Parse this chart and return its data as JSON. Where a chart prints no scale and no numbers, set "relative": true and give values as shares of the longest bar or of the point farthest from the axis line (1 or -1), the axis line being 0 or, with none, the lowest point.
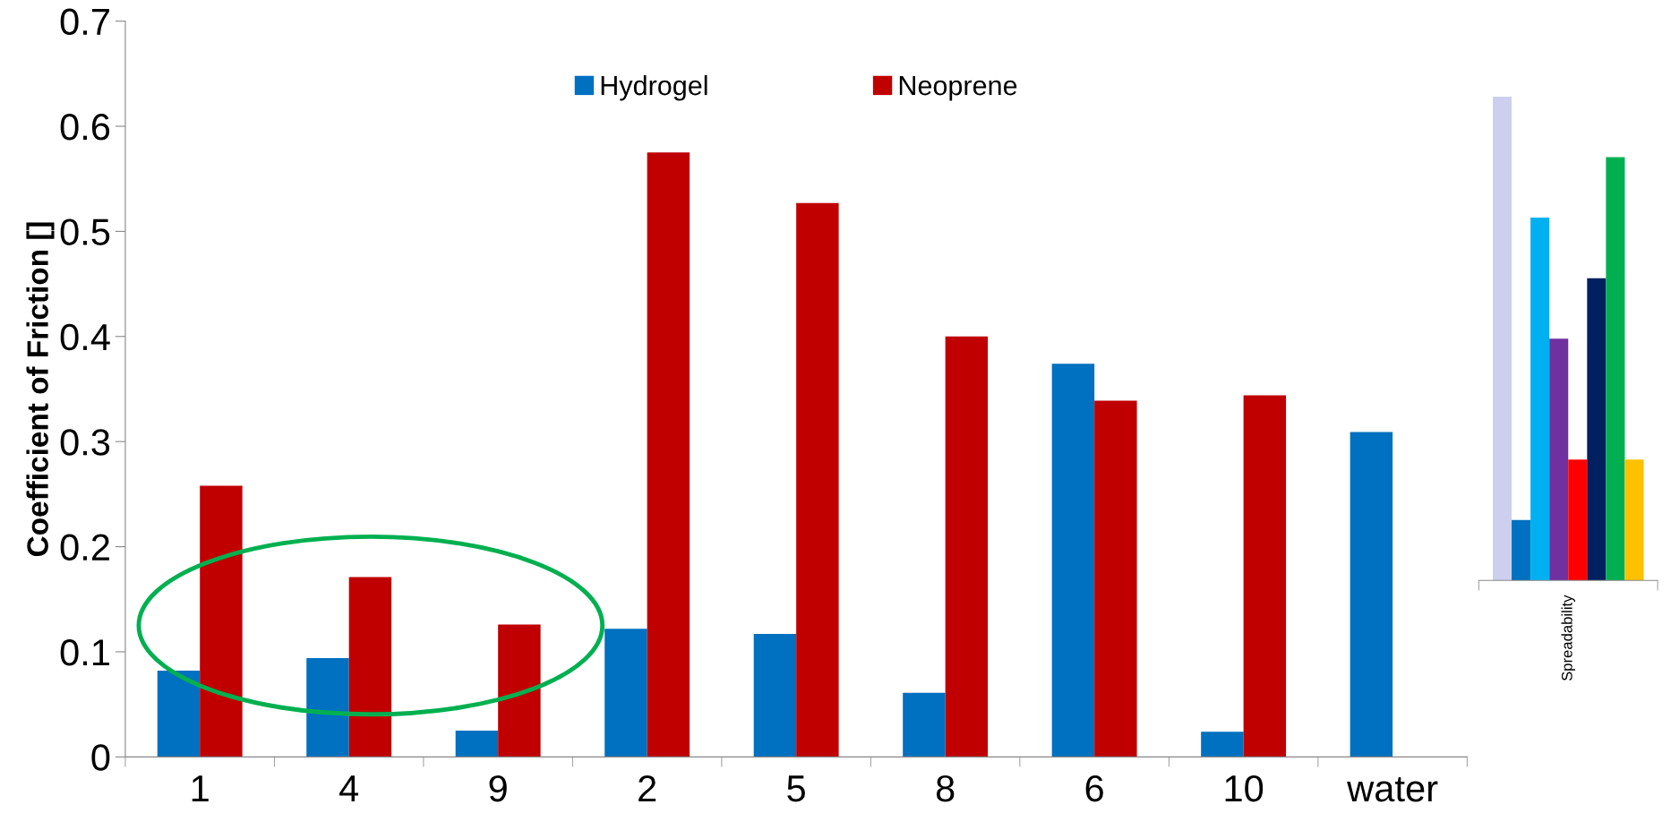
{
  "chart_data": [
    {
      "type": "bar",
      "ylabel": "Coefficient of Friction []",
      "categories": [
        "1",
        "4",
        "9",
        "2",
        "5",
        "8",
        "6",
        "10",
        "water"
      ],
      "series": [
        {
          "name": "Hydrogel",
          "color": "#0070c0",
          "values": [
            0.082,
            0.094,
            0.025,
            0.122,
            0.117,
            0.061,
            0.374,
            0.024,
            0.309
          ]
        },
        {
          "name": "Neoprene",
          "color": "#c00000",
          "values": [
            0.258,
            0.171,
            0.126,
            0.575,
            0.527,
            0.4,
            0.339,
            0.344,
            null
          ]
        }
      ],
      "ylim": [
        0,
        0.7
      ],
      "yticks": [
        0,
        0.1,
        0.2,
        0.3,
        0.4,
        0.5,
        0.6,
        0.7
      ],
      "legend": "top"
    },
    {
      "type": "bar",
      "relative": true,
      "annotations": [
        "Spreadability"
      ],
      "categories": [
        null,
        null,
        null,
        null,
        null,
        null,
        null,
        null
      ],
      "values": [
        1,
        0.125,
        0.75,
        0.5,
        0.25,
        0.625,
        0.875,
        0.25
      ],
      "colors": [
        "#ccd0ee",
        "#0070c0",
        "#00b0f0",
        "#7030a0",
        "#ff0000",
        "#002060",
        "#00b050",
        "#ffc000"
      ]
    }
  ]
}
